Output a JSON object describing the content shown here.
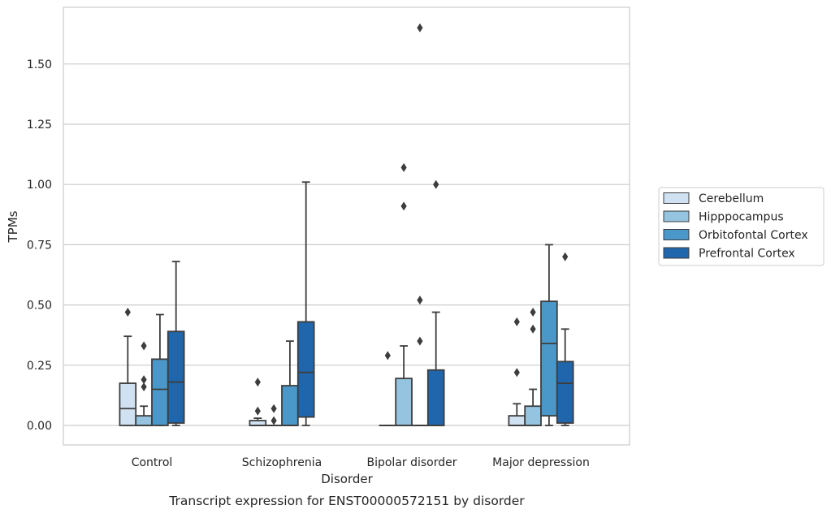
{
  "chart_data": {
    "type": "box",
    "title": "Transcript expression for ENST00000572151 by disorder",
    "xlabel": "Disorder",
    "ylabel": "TPMs",
    "categories": [
      "Control",
      "Schizophrenia",
      "Bipolar disorder",
      "Major depression"
    ],
    "ylim": [
      -0.08,
      1.78
    ],
    "yticks": [
      "0.00",
      "0.25",
      "0.50",
      "0.75",
      "1.00",
      "1.25",
      "1.50"
    ],
    "grid": true,
    "legend": {
      "placement": "right",
      "entries": [
        "Cerebellum",
        "Hipppocampus",
        "Orbitofontal Cortex",
        "Prefrontal Cortex"
      ]
    },
    "colors": {
      "Cerebellum": "#d0e1f2",
      "Hipppocampus": "#94c4df",
      "Orbitofontal Cortex": "#4a98c9",
      "Prefrontal Cortex": "#2066ac",
      "line": "#3d3d3d",
      "grid": "#cccccc",
      "frame": "#cccccc"
    },
    "series": [
      {
        "name": "Cerebellum",
        "boxes": [
          {
            "whislo": 0.0,
            "q1": 0.0,
            "med": 0.07,
            "q3": 0.175,
            "whishi": 0.37,
            "fliers": [
              0.47
            ]
          },
          {
            "whislo": 0.0,
            "q1": 0.0,
            "med": 0.0,
            "q3": 0.02,
            "whishi": 0.03,
            "fliers": [
              0.06,
              0.18
            ]
          },
          {
            "whislo": 0.0,
            "q1": 0.0,
            "med": 0.0,
            "q3": 0.0,
            "whishi": 0.0,
            "fliers": [
              0.29
            ]
          },
          {
            "whislo": 0.0,
            "q1": 0.0,
            "med": 0.0,
            "q3": 0.04,
            "whishi": 0.09,
            "fliers": [
              0.22,
              0.43
            ]
          }
        ]
      },
      {
        "name": "Hipppocampus",
        "boxes": [
          {
            "whislo": 0.0,
            "q1": 0.0,
            "med": 0.0,
            "q3": 0.04,
            "whishi": 0.08,
            "fliers": [
              0.16,
              0.19,
              0.33
            ]
          },
          {
            "whislo": 0.0,
            "q1": 0.0,
            "med": 0.0,
            "q3": 0.0,
            "whishi": 0.0,
            "fliers": [
              0.02,
              0.07
            ]
          },
          {
            "whislo": 0.0,
            "q1": 0.0,
            "med": 0.0,
            "q3": 0.195,
            "whishi": 0.33,
            "fliers": [
              0.91,
              1.07
            ]
          },
          {
            "whislo": 0.0,
            "q1": 0.0,
            "med": 0.0,
            "q3": 0.08,
            "whishi": 0.15,
            "fliers": [
              0.4,
              0.47
            ]
          }
        ]
      },
      {
        "name": "Orbitofontal Cortex",
        "boxes": [
          {
            "whislo": 0.0,
            "q1": 0.0,
            "med": 0.15,
            "q3": 0.275,
            "whishi": 0.46,
            "fliers": []
          },
          {
            "whislo": 0.0,
            "q1": 0.0,
            "med": 0.0,
            "q3": 0.165,
            "whishi": 0.35,
            "fliers": []
          },
          {
            "whislo": 0.0,
            "q1": 0.0,
            "med": 0.0,
            "q3": 0.0,
            "whishi": 0.0,
            "fliers": [
              0.35,
              0.52,
              1.65
            ]
          },
          {
            "whislo": 0.0,
            "q1": 0.04,
            "med": 0.34,
            "q3": 0.515,
            "whishi": 0.75,
            "fliers": []
          }
        ]
      },
      {
        "name": "Prefrontal Cortex",
        "boxes": [
          {
            "whislo": 0.0,
            "q1": 0.01,
            "med": 0.18,
            "q3": 0.39,
            "whishi": 0.68,
            "fliers": []
          },
          {
            "whislo": 0.0,
            "q1": 0.035,
            "med": 0.22,
            "q3": 0.43,
            "whishi": 1.01,
            "fliers": []
          },
          {
            "whislo": 0.0,
            "q1": 0.0,
            "med": 0.0,
            "q3": 0.23,
            "whishi": 0.47,
            "fliers": [
              1.0
            ]
          },
          {
            "whislo": 0.0,
            "q1": 0.01,
            "med": 0.175,
            "q3": 0.265,
            "whishi": 0.4,
            "fliers": [
              0.7
            ]
          }
        ]
      }
    ]
  }
}
